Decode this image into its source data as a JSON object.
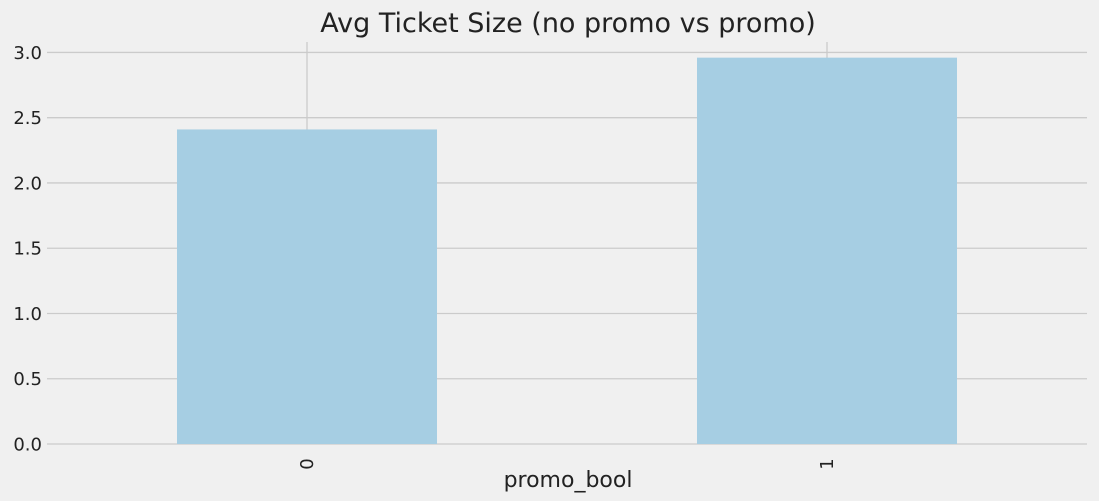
{
  "chart_data": {
    "type": "bar",
    "title": "Avg Ticket Size (no promo vs promo)",
    "xlabel": "promo_bool",
    "ylabel": "",
    "categories": [
      "0",
      "1"
    ],
    "values": [
      2.41,
      2.96
    ],
    "ylim": [
      0,
      3.08
    ],
    "yticks": [
      "0.0",
      "0.5",
      "1.0",
      "1.5",
      "2.0",
      "2.5",
      "3.0"
    ],
    "grid": true,
    "legend": "none",
    "bar_color": "#a6cee3",
    "background_color": "#f0f0f0",
    "grid_color": "#cbcbcb"
  }
}
